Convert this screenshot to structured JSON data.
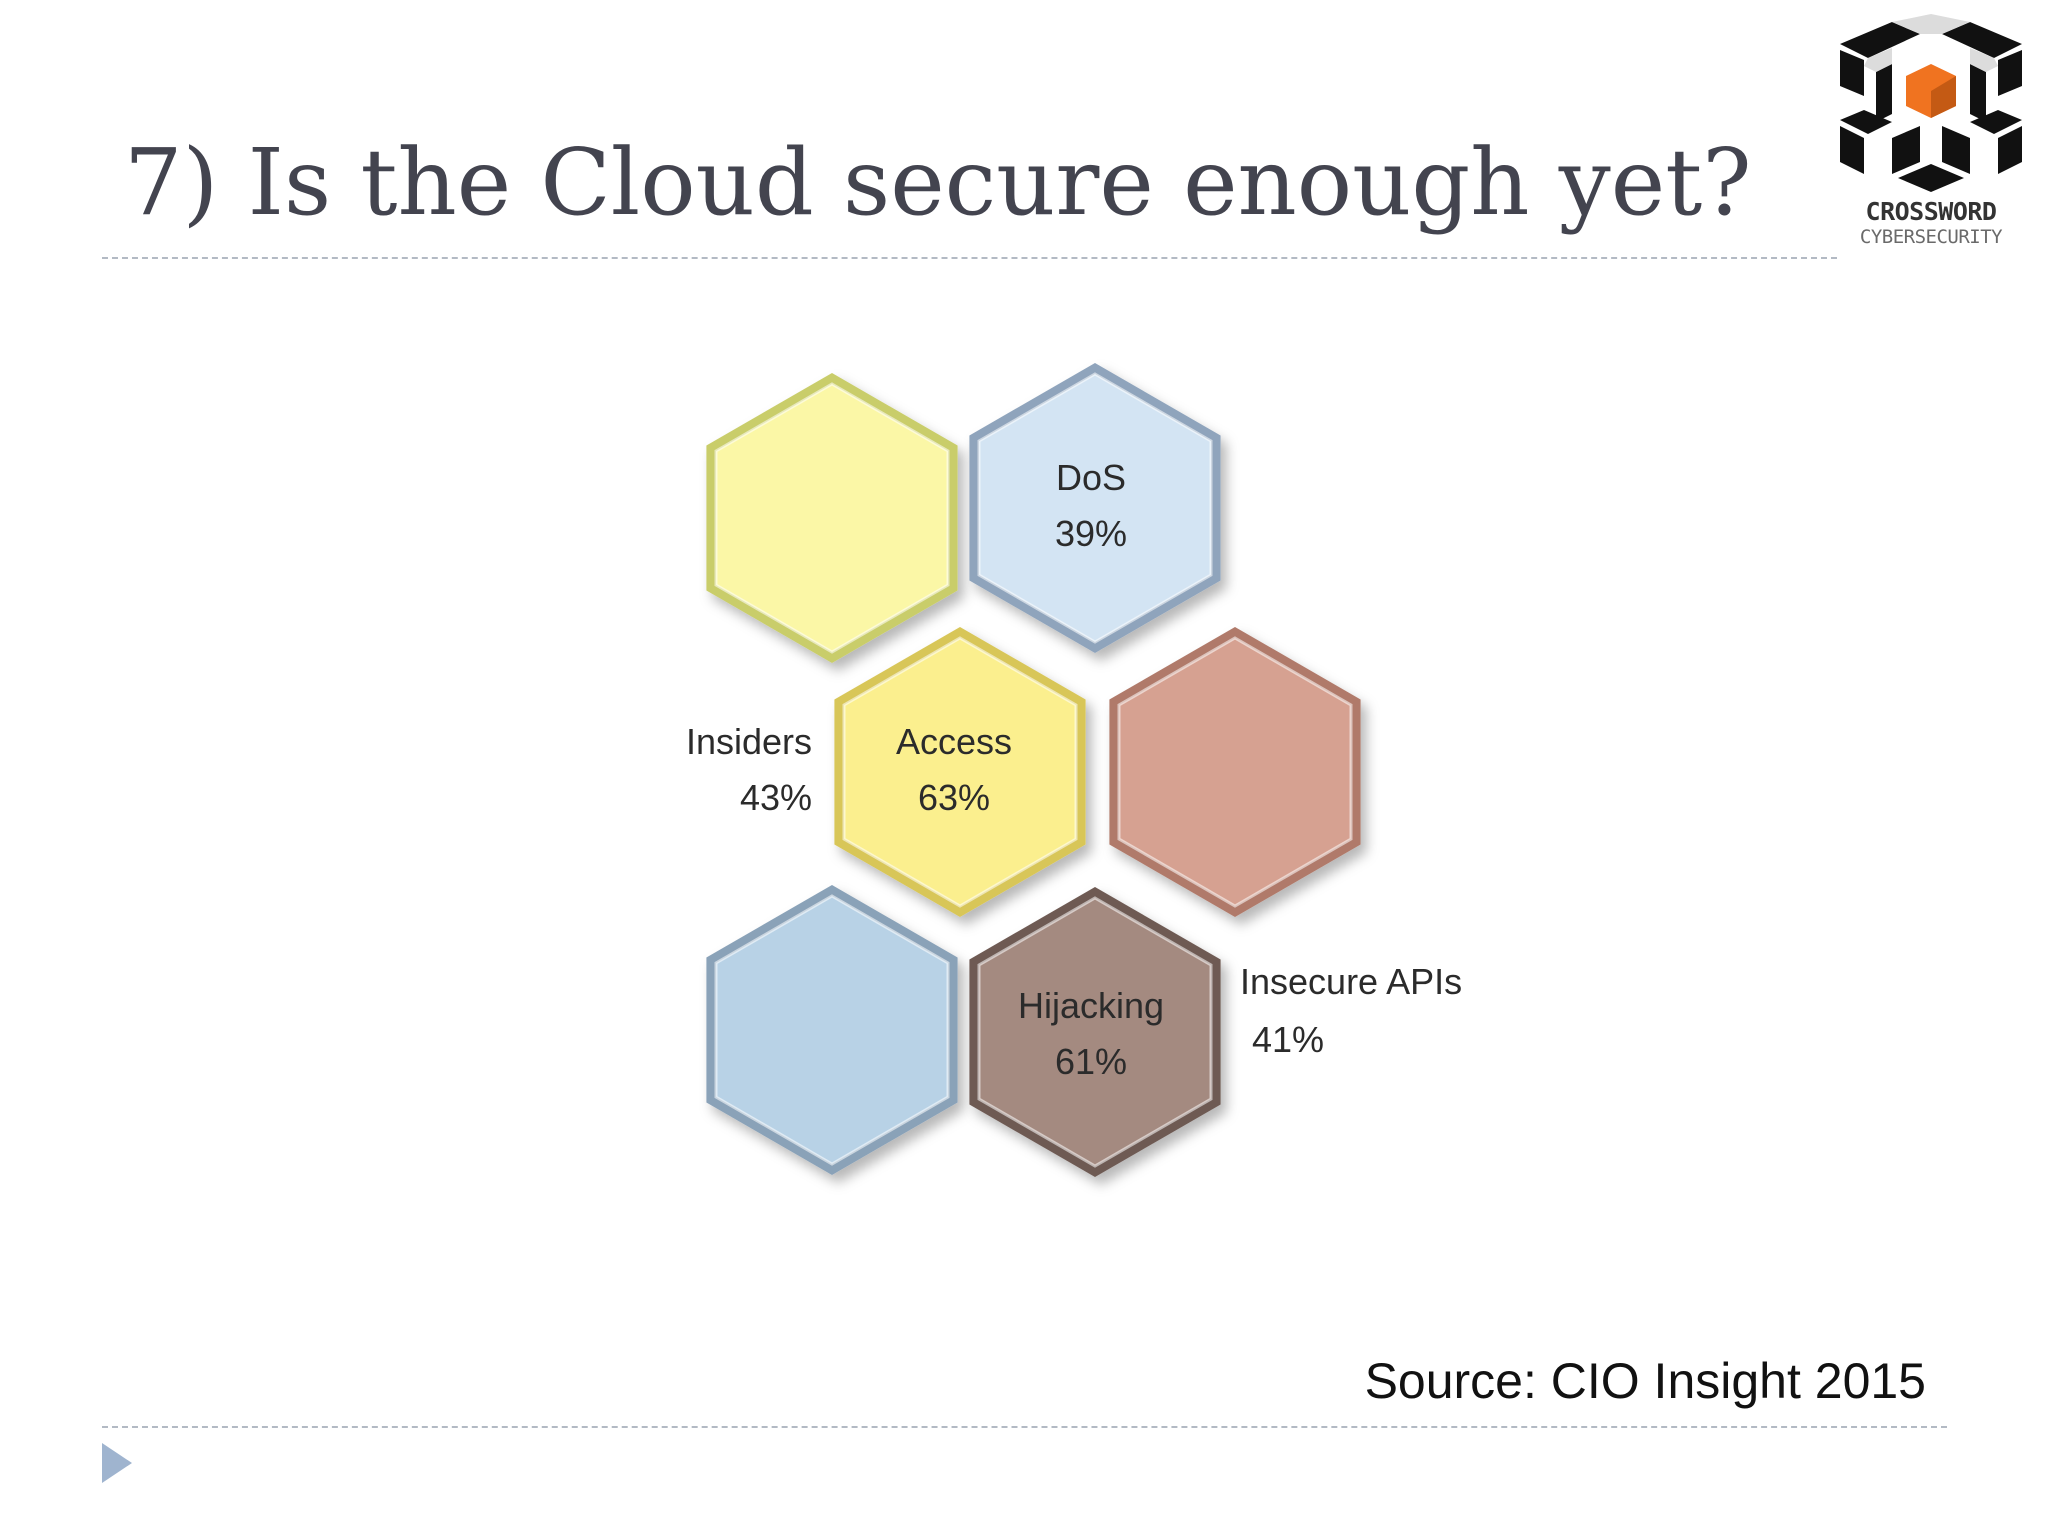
{
  "slide": {
    "title": "7) Is the Cloud secure enough yet?",
    "source": "Source: CIO Insight 2015"
  },
  "logo": {
    "name": "CROSSWORD",
    "tagline": "CYBERSECURITY",
    "accent_color": "#f07320"
  },
  "hexagons": [
    {
      "id": "insiders",
      "label": "Insiders",
      "value": "43%",
      "color": "#fbf7a6",
      "border": "#c9cd6a"
    },
    {
      "id": "dos",
      "label": "DoS",
      "value": "39%",
      "color": "#d3e4f3",
      "border": "#8fa4bc"
    },
    {
      "id": "access",
      "label": "Access",
      "value": "63%",
      "color": "#fbef8e",
      "border": "#d8c659"
    },
    {
      "id": "insecure-apis",
      "label": "Insecure APIs",
      "value": "41%",
      "color": "#d6a191",
      "border": "#b07a6a"
    },
    {
      "id": "unlabeled-blue",
      "label": "",
      "value": "",
      "color": "#b8d2e6",
      "border": "#8aa2b8"
    },
    {
      "id": "hijacking",
      "label": "Hijacking",
      "value": "61%",
      "color": "#a48a80",
      "border": "#6e5a53"
    }
  ],
  "nav": {
    "icon": "triangle-right-icon",
    "color": "#9fb4cf"
  }
}
